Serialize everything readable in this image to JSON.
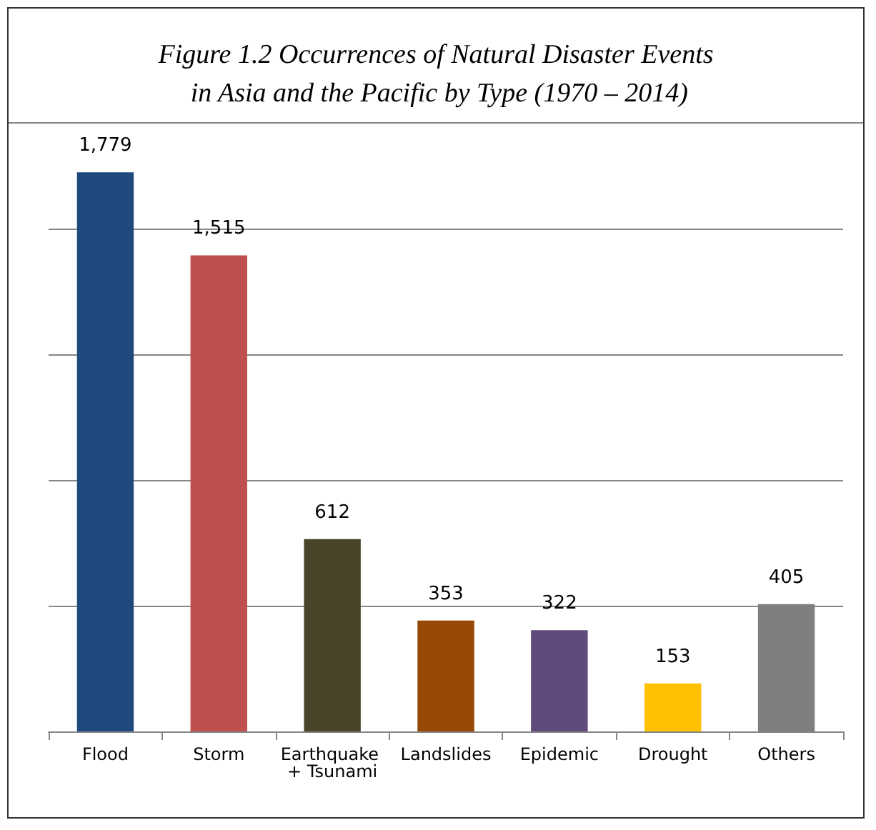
{
  "chart_data": {
    "type": "bar",
    "title": "Figure 1.2 Occurrences of Natural Disaster Events in Asia and the Pacific by Type (1970 – 2014)",
    "categories": [
      "Flood",
      "Storm",
      "Earthquake + Tsunami",
      "Landslides",
      "Epidemic",
      "Drought",
      "Others"
    ],
    "values": [
      1779,
      1515,
      612,
      353,
      322,
      153,
      405
    ],
    "colors": [
      "#1f497d",
      "#c0504d",
      "#4a452a",
      "#984807",
      "#604a7b",
      "#ffc000",
      "#7f7f7f"
    ],
    "value_labels": [
      "1,779",
      "1,515",
      "612",
      "353",
      "322",
      "153",
      "405"
    ],
    "yticks": [
      {
        "value": 0,
        "label": null
      },
      {
        "value": 400,
        "label": null
      },
      {
        "value": 800,
        "label": null
      },
      {
        "value": 1200,
        "label": null
      },
      {
        "value": 1600,
        "label": null
      }
    ],
    "grid": "y",
    "tick_labels": "x"
  }
}
